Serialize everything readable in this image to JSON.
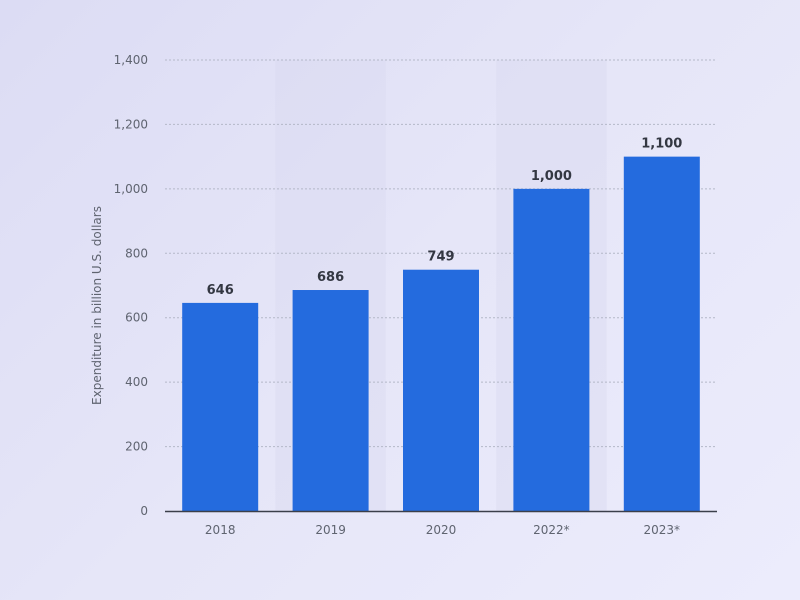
{
  "chart_data": {
    "type": "bar",
    "categories": [
      "2018",
      "2019",
      "2020",
      "2022*",
      "2023*"
    ],
    "values": [
      646,
      686,
      749,
      1000,
      1100
    ],
    "value_labels": [
      "646",
      "686",
      "749",
      "1,000",
      "1,100"
    ],
    "title": "",
    "xlabel": "",
    "ylabel": "Expenditure in billion U.S. dollars",
    "ylim": [
      0,
      1400
    ],
    "yticks": [
      0,
      200,
      400,
      600,
      800,
      1000,
      1200,
      1400
    ],
    "ytick_labels": [
      "0",
      "200",
      "400",
      "600",
      "800",
      "1,000",
      "1,200",
      "1,400"
    ],
    "grid": true,
    "legend": "none",
    "colors": {
      "bar": "#246bde",
      "gridline": "#b4b8c8",
      "axis": "#3b3f4a",
      "band": "#d9d9ef"
    }
  }
}
